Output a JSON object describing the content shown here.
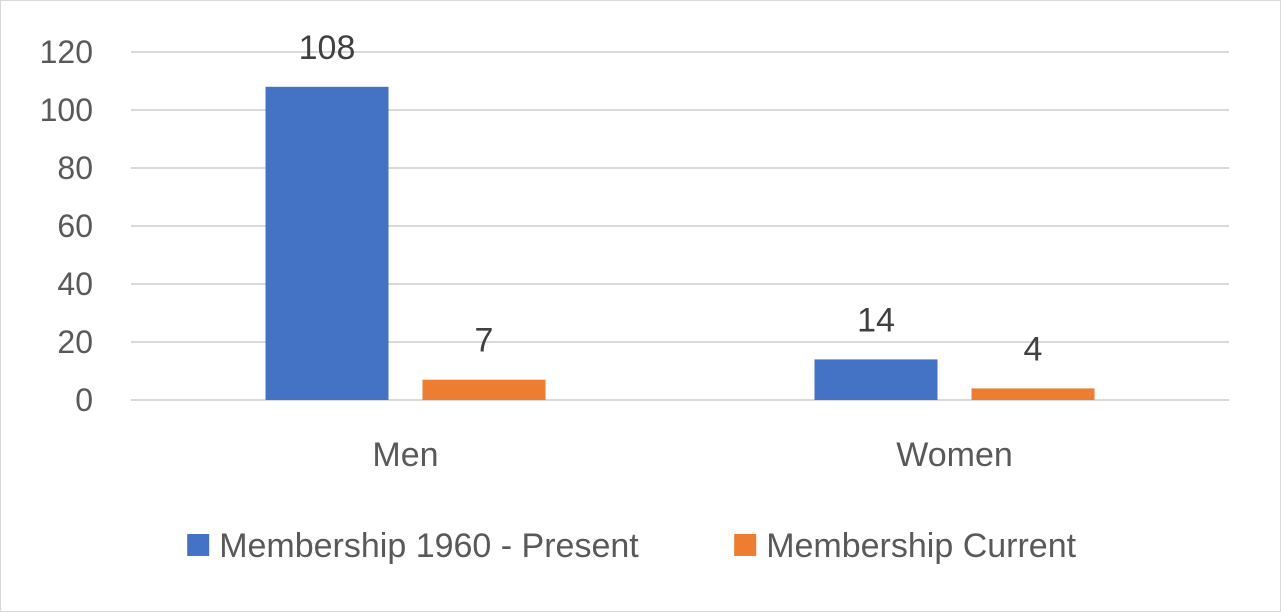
{
  "chart_data": {
    "type": "bar",
    "categories": [
      "Men",
      "Women"
    ],
    "series": [
      {
        "name": "Membership 1960 - Present",
        "values": [
          108,
          14
        ],
        "color": "#4472c4"
      },
      {
        "name": "Membership Current",
        "values": [
          7,
          4
        ],
        "color": "#ed7d31"
      }
    ],
    "ylim": [
      0,
      120
    ],
    "yticks": [
      0,
      20,
      40,
      60,
      80,
      100,
      120
    ],
    "grid": true,
    "legend": "bottom",
    "data_labels": true
  }
}
